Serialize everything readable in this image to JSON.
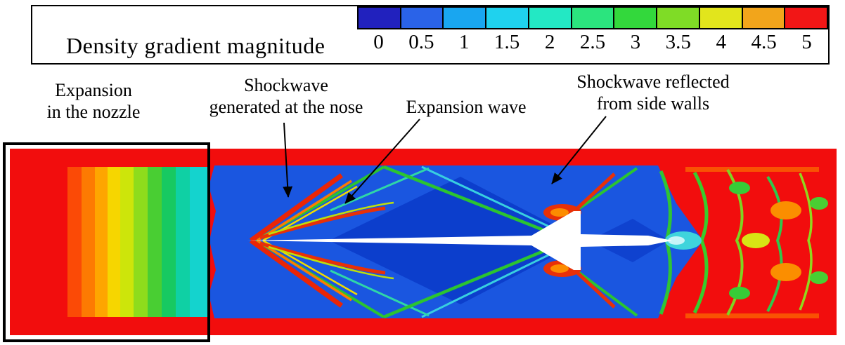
{
  "chart_data": {
    "type": "heatmap",
    "colorbar_label": "Density gradient magnitude",
    "colorbar_ticks": [
      0,
      0.5,
      1,
      1.5,
      2,
      2.5,
      3,
      3.5,
      4,
      4.5,
      5
    ],
    "range": [
      0,
      5
    ],
    "legend_position": "top",
    "annotations": [
      "Expansion in the nozzle",
      "Shockwave generated at the nose",
      "Expansion wave",
      "Shockwave reflected from side walls"
    ]
  },
  "legend": {
    "label": "Density gradient magnitude",
    "ticks": [
      "0",
      "0.5",
      "1",
      "1.5",
      "2",
      "2.5",
      "3",
      "3.5",
      "4",
      "4.5",
      "5"
    ],
    "cell_colors": [
      "#2121BE",
      "#2A63E8",
      "#19A6F0",
      "#1FD2EE",
      "#23E8C4",
      "#2BE47E",
      "#33D83C",
      "#7FDC26",
      "#E2E51C",
      "#F2A51B",
      "#F21616"
    ]
  },
  "annotations": {
    "nozzle": {
      "line1": "Expansion",
      "line2": "in the nozzle"
    },
    "nose_shock": {
      "line1": "Shockwave",
      "line2": "generated at the nose"
    },
    "expansion_wave": {
      "line1": "Expansion wave",
      "line2": ""
    },
    "reflected_shock": {
      "line1": "Shockwave reflected",
      "line2": "from side walls"
    }
  },
  "palette": {
    "wall_red": "#F20D0D",
    "freestream_blue": "#1A56E0",
    "dark_blue": "#0B3AC8",
    "projectile_white": "#FFFFFF",
    "nozzle_bands": [
      "#FB4A06",
      "#FD7A02",
      "#FEA500",
      "#F6D600",
      "#CDE50A",
      "#8EDC1C",
      "#49CE33",
      "#17C961",
      "#0FD0A4",
      "#14D3CE"
    ]
  }
}
